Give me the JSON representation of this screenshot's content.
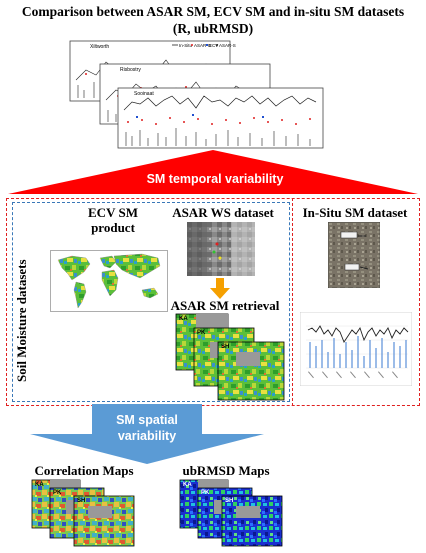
{
  "title": {
    "line1": "Comparison between ASAR SM, ECV SM and in-situ SM datasets",
    "line2": "(R, ubRMSD)"
  },
  "timeseries": {
    "plot_names": [
      "Xiltworth",
      "Risbostry",
      "Sooinaat"
    ],
    "legend": [
      "In-Situ",
      "ASAR-G",
      "ECV",
      "ASAR-S"
    ]
  },
  "temporal_arrow": {
    "label": "SM temporal variability",
    "color": "#ff0000"
  },
  "side_label": "Soil Moisture datasets",
  "ecv": {
    "label_line1": "ECV SM",
    "label_line2": "product"
  },
  "asar_ws": {
    "label": "ASAR WS dataset"
  },
  "asar_retrieval": {
    "label": "ASAR SM retrieval",
    "tags": [
      "KA",
      "PK",
      "SH"
    ]
  },
  "insitu": {
    "label": "In-Situ SM dataset"
  },
  "spatial_arrow": {
    "label_line1": "SM spatial",
    "label_line2": "variability",
    "color": "#5b9bd5"
  },
  "correlation_maps": {
    "label": "Correlation Maps",
    "tags": [
      "KA",
      "PK",
      "SH"
    ]
  },
  "ubrmsd_maps": {
    "label": "ubRMSD Maps",
    "tags": [
      "KA",
      "PK",
      "SH"
    ]
  },
  "colors": {
    "red_dashed": "#e02020",
    "blue_dashed": "#3a78b8",
    "orange_arrow": "#f5a000"
  }
}
